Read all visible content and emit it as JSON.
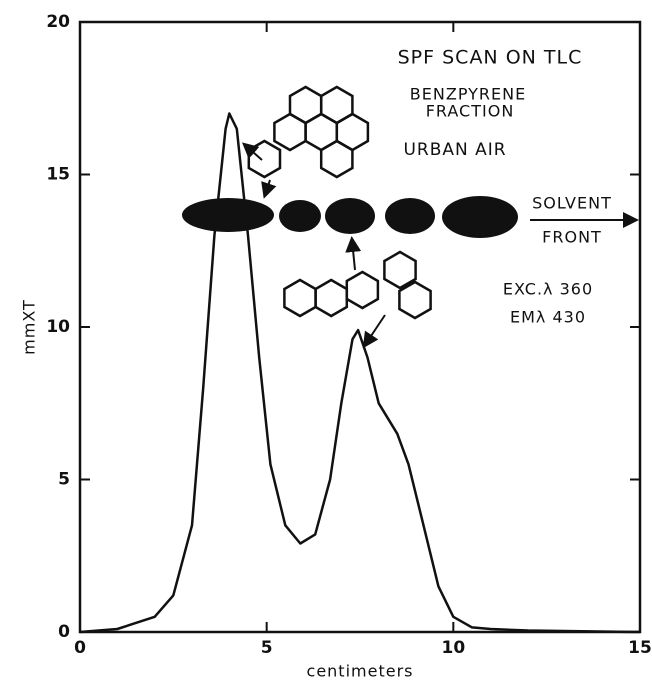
{
  "chart_data": {
    "type": "line",
    "xlabel": "centimeters",
    "ylabel": "mmXT",
    "annotations": [
      "SPF SCAN ON TLC",
      "BENZPYRENE",
      "FRACTION",
      "URBAN AIR",
      "SOLVENT",
      "FRONT",
      "EXC.λ 360",
      "EMλ 430"
    ],
    "x": [
      0,
      1,
      2,
      2.5,
      3,
      3.3,
      3.6,
      3.9,
      4.0,
      4.2,
      4.5,
      4.8,
      5.1,
      5.5,
      5.9,
      6.3,
      6.7,
      7.0,
      7.3,
      7.45,
      7.7,
      8.0,
      8.5,
      8.8,
      9.2,
      9.6,
      10.0,
      10.5,
      11,
      12,
      15
    ],
    "values": [
      0,
      0.1,
      0.5,
      1.2,
      3.5,
      8,
      13,
      16.5,
      17,
      16.5,
      13,
      9,
      5.5,
      3.5,
      2.9,
      3.2,
      5,
      7.5,
      9.6,
      9.9,
      9,
      7.5,
      6.5,
      5.5,
      3.5,
      1.5,
      0.5,
      0.15,
      0.1,
      0.05,
      0
    ],
    "color": "#111111",
    "xlim": [
      0,
      15
    ],
    "xticks": [
      0,
      5,
      10,
      15
    ],
    "ylim": [
      0,
      20
    ],
    "yticks": [
      0,
      5,
      10,
      15,
      20
    ]
  }
}
